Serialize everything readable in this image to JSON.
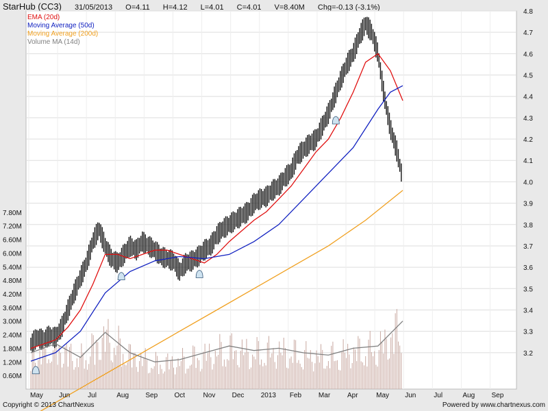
{
  "header": {
    "title": "StarHub (CC3)",
    "date": "31/05/2013",
    "open": "O=4.11",
    "high": "H=4.12",
    "low": "L=4.01",
    "close": "C=4.01",
    "volume": "V=8.40M",
    "change": "Chg=-0.13 (-3.1%)"
  },
  "legend": [
    {
      "label": "EMA (20d)",
      "color": "#e01010"
    },
    {
      "label": "Moving Average (50d)",
      "color": "#1020c0"
    },
    {
      "label": "Moving Average (200d)",
      "color": "#f0a020"
    },
    {
      "label": "Volume MA (14d)",
      "color": "#808080"
    }
  ],
  "footer": {
    "copyright": "Copyright © 2013 ChartNexus",
    "powered": "Powered by www.chartnexus.com"
  },
  "colors": {
    "candle": "#111111",
    "volume_bar": "#c8a8a0",
    "grid": "#ffffff",
    "background": "#e9e9e9"
  },
  "chart_data": {
    "type": "candlestick",
    "title": "StarHub (CC3)",
    "price_axis": {
      "ticks": [
        "3.2",
        "3.3",
        "3.4",
        "3.5",
        "3.6",
        "3.7",
        "3.8",
        "3.9",
        "4.0",
        "4.1",
        "4.2",
        "4.3",
        "4.4",
        "4.5",
        "4.6",
        "4.7",
        "4.8"
      ],
      "ylim": [
        3.1,
        4.8
      ]
    },
    "volume_axis": {
      "ticks": [
        "0.60M",
        "1.20M",
        "1.80M",
        "2.40M",
        "3.00M",
        "3.60M",
        "4.20M",
        "4.80M",
        "5.40M",
        "6.00M",
        "6.60M",
        "7.20M",
        "7.80M"
      ],
      "ylim": [
        0,
        8.4
      ]
    },
    "x_axis": {
      "ticks": [
        "May",
        "Jun",
        "Jul",
        "Aug",
        "Sep",
        "Oct",
        "Nov",
        "Dec",
        "2013",
        "Feb",
        "Mar",
        "Apr",
        "May",
        "Jun",
        "Jul",
        "Aug",
        "Sep"
      ]
    },
    "series": [
      {
        "name": "Price",
        "points": [
          [
            0,
            3.24
          ],
          [
            0.5,
            3.27
          ],
          [
            1,
            3.26
          ],
          [
            1.5,
            3.28
          ],
          [
            2,
            3.27
          ],
          [
            2.5,
            3.32
          ],
          [
            3,
            3.4
          ],
          [
            3.5,
            3.48
          ],
          [
            4,
            3.55
          ],
          [
            4.5,
            3.62
          ],
          [
            5,
            3.72
          ],
          [
            5.5,
            3.78
          ],
          [
            6,
            3.7
          ],
          [
            6.5,
            3.64
          ],
          [
            7,
            3.62
          ],
          [
            7.5,
            3.66
          ],
          [
            8,
            3.7
          ],
          [
            8.5,
            3.68
          ],
          [
            9,
            3.72
          ],
          [
            9.5,
            3.7
          ],
          [
            10,
            3.68
          ],
          [
            10.5,
            3.65
          ],
          [
            11,
            3.64
          ],
          [
            11.5,
            3.63
          ],
          [
            12,
            3.58
          ],
          [
            12.5,
            3.62
          ],
          [
            13,
            3.63
          ],
          [
            13.5,
            3.65
          ],
          [
            14,
            3.68
          ],
          [
            14.5,
            3.7
          ],
          [
            15,
            3.75
          ],
          [
            15.5,
            3.78
          ],
          [
            16,
            3.8
          ],
          [
            16.5,
            3.82
          ],
          [
            17,
            3.84
          ],
          [
            17.5,
            3.86
          ],
          [
            18,
            3.9
          ],
          [
            18.5,
            3.92
          ],
          [
            19,
            3.93
          ],
          [
            19.5,
            3.96
          ],
          [
            20,
            3.98
          ],
          [
            20.5,
            4.02
          ],
          [
            21,
            4.05
          ],
          [
            21.5,
            4.12
          ],
          [
            22,
            4.15
          ],
          [
            22.5,
            4.18
          ],
          [
            23,
            4.2
          ],
          [
            23.5,
            4.26
          ],
          [
            24,
            4.32
          ],
          [
            24.5,
            4.4
          ],
          [
            25,
            4.48
          ],
          [
            25.5,
            4.55
          ],
          [
            26,
            4.6
          ],
          [
            26.5,
            4.68
          ],
          [
            27,
            4.74
          ],
          [
            27.5,
            4.7
          ],
          [
            28,
            4.6
          ],
          [
            28.5,
            4.4
          ],
          [
            29,
            4.25
          ],
          [
            29.5,
            4.15
          ],
          [
            30,
            4.01
          ]
        ]
      },
      {
        "name": "EMA (20d)",
        "points": [
          [
            0,
            3.22
          ],
          [
            1,
            3.24
          ],
          [
            2,
            3.26
          ],
          [
            3,
            3.32
          ],
          [
            4,
            3.4
          ],
          [
            5,
            3.52
          ],
          [
            6,
            3.66
          ],
          [
            7,
            3.66
          ],
          [
            8,
            3.64
          ],
          [
            9,
            3.66
          ],
          [
            10,
            3.68
          ],
          [
            11,
            3.68
          ],
          [
            12,
            3.66
          ],
          [
            13,
            3.64
          ],
          [
            14,
            3.62
          ],
          [
            15,
            3.66
          ],
          [
            16,
            3.72
          ],
          [
            17,
            3.77
          ],
          [
            18,
            3.82
          ],
          [
            19,
            3.86
          ],
          [
            20,
            3.92
          ],
          [
            21,
            3.98
          ],
          [
            22,
            4.06
          ],
          [
            23,
            4.14
          ],
          [
            24,
            4.2
          ],
          [
            25,
            4.3
          ],
          [
            26,
            4.42
          ],
          [
            27,
            4.56
          ],
          [
            28,
            4.6
          ],
          [
            29,
            4.52
          ],
          [
            30,
            4.38
          ]
        ]
      },
      {
        "name": "Moving Average (50d)",
        "points": [
          [
            0,
            3.16
          ],
          [
            2,
            3.2
          ],
          [
            4,
            3.3
          ],
          [
            6,
            3.48
          ],
          [
            8,
            3.58
          ],
          [
            10,
            3.63
          ],
          [
            12,
            3.65
          ],
          [
            14,
            3.64
          ],
          [
            16,
            3.66
          ],
          [
            18,
            3.72
          ],
          [
            20,
            3.8
          ],
          [
            22,
            3.92
          ],
          [
            24,
            4.04
          ],
          [
            26,
            4.16
          ],
          [
            28,
            4.34
          ],
          [
            29,
            4.42
          ],
          [
            30,
            4.45
          ]
        ]
      },
      {
        "name": "Moving Average (200d)",
        "points": [
          [
            0,
            2.9
          ],
          [
            3,
            3.0
          ],
          [
            6,
            3.1
          ],
          [
            9,
            3.2
          ],
          [
            12,
            3.3
          ],
          [
            15,
            3.4
          ],
          [
            18,
            3.5
          ],
          [
            21,
            3.6
          ],
          [
            24,
            3.7
          ],
          [
            27,
            3.82
          ],
          [
            30,
            3.96
          ]
        ]
      },
      {
        "name": "Volume MA (14d)",
        "points": [
          [
            0,
            1.6
          ],
          [
            2,
            2.0
          ],
          [
            4,
            1.4
          ],
          [
            6,
            2.5
          ],
          [
            8,
            1.6
          ],
          [
            10,
            1.2
          ],
          [
            12,
            1.3
          ],
          [
            14,
            1.6
          ],
          [
            16,
            1.9
          ],
          [
            18,
            1.7
          ],
          [
            20,
            1.8
          ],
          [
            22,
            1.6
          ],
          [
            24,
            1.5
          ],
          [
            26,
            1.8
          ],
          [
            28,
            1.9
          ],
          [
            30,
            3.0
          ]
        ]
      }
    ]
  }
}
